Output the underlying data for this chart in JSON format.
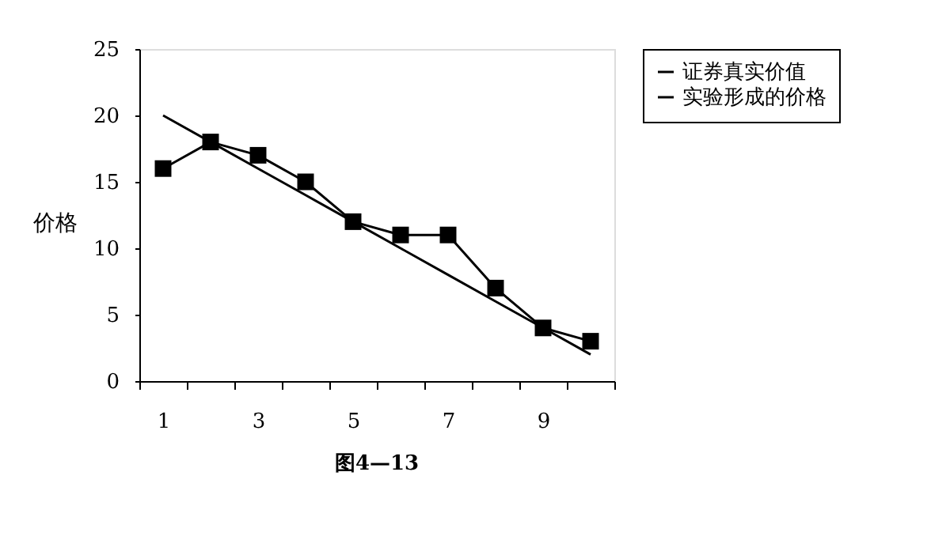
{
  "chart_data": {
    "type": "line",
    "ylabel": "价格",
    "categories": [
      "1",
      null,
      "3",
      null,
      "5",
      null,
      "7",
      null,
      "9",
      null
    ],
    "series": [
      {
        "name": "证券真实价值",
        "color": "#000000",
        "marker": "none",
        "values": [
          20,
          18,
          16,
          14,
          12,
          10,
          8,
          6,
          4,
          2
        ]
      },
      {
        "name": "实验形成的价格",
        "color": "#000000",
        "marker": "square",
        "values": [
          16,
          18,
          17,
          15,
          12,
          11,
          11,
          7,
          4,
          3
        ]
      }
    ],
    "ylim": [
      0,
      25
    ],
    "yticks": [
      0,
      5,
      10,
      15,
      20,
      25
    ],
    "grid": false,
    "legend": "right",
    "line_style": "solid",
    "annotations": [
      "图4—13"
    ]
  }
}
